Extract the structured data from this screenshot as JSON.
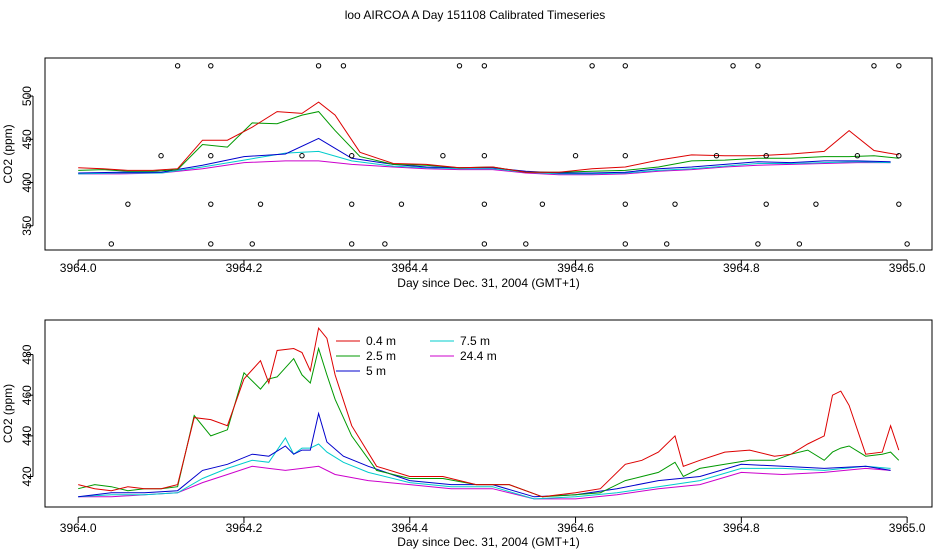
{
  "figure": {
    "title": "loo AIRCOA A  Day 151108  Calibrated Timeseries"
  },
  "chart_data": [
    {
      "type": "line",
      "xlabel": "Day since Dec. 31, 2004 (GMT+1)",
      "ylabel": "CO2 (ppm)",
      "xlim": [
        3963.96,
        3965.03
      ],
      "ylim": [
        322,
        544
      ],
      "x_ticks": [
        3964.0,
        3964.2,
        3964.4,
        3964.6,
        3964.8,
        3965.0
      ],
      "x_tick_labels": [
        "3964.0",
        "3964.2",
        "3964.4",
        "3964.6",
        "3964.8",
        "3965.0"
      ],
      "y_ticks": [
        350,
        400,
        450,
        500
      ],
      "y_tick_labels": [
        "350",
        "400",
        "450",
        "500"
      ],
      "series": [
        {
          "name": "0.4 m",
          "color": "#dd0000",
          "x": [
            3964.0,
            3964.03,
            3964.06,
            3964.09,
            3964.12,
            3964.15,
            3964.18,
            3964.21,
            3964.24,
            3964.27,
            3964.29,
            3964.31,
            3964.34,
            3964.38,
            3964.42,
            3964.46,
            3964.5,
            3964.54,
            3964.58,
            3964.62,
            3964.66,
            3964.7,
            3964.74,
            3964.78,
            3964.82,
            3964.86,
            3964.9,
            3964.93,
            3964.96,
            3964.99
          ],
          "y": [
            417,
            416,
            414,
            414,
            416,
            449,
            449,
            464,
            482,
            480,
            493,
            478,
            435,
            422,
            421,
            417,
            418,
            412,
            412,
            416,
            418,
            426,
            432,
            431,
            431,
            433,
            436,
            460,
            437,
            432
          ]
        },
        {
          "name": "2.5 m",
          "color": "#009900",
          "x": [
            3964.0,
            3964.03,
            3964.06,
            3964.09,
            3964.12,
            3964.15,
            3964.18,
            3964.21,
            3964.24,
            3964.27,
            3964.29,
            3964.31,
            3964.34,
            3964.38,
            3964.42,
            3964.46,
            3964.5,
            3964.54,
            3964.58,
            3964.62,
            3964.66,
            3964.7,
            3964.74,
            3964.78,
            3964.82,
            3964.86,
            3964.9,
            3964.93,
            3964.96,
            3964.99
          ],
          "y": [
            414,
            415,
            413,
            413,
            415,
            444,
            441,
            469,
            468,
            478,
            482,
            460,
            430,
            421,
            420,
            417,
            418,
            412,
            412,
            413,
            414,
            418,
            425,
            426,
            428,
            428,
            430,
            430,
            431,
            428
          ]
        },
        {
          "name": "5 m",
          "color": "#0000cc",
          "x": [
            3964.0,
            3964.05,
            3964.1,
            3964.15,
            3964.2,
            3964.25,
            3964.29,
            3964.33,
            3964.38,
            3964.42,
            3964.46,
            3964.5,
            3964.54,
            3964.58,
            3964.62,
            3964.66,
            3964.7,
            3964.74,
            3964.78,
            3964.82,
            3964.86,
            3964.9,
            3964.94,
            3964.98
          ],
          "y": [
            411,
            412,
            412,
            420,
            430,
            433,
            451,
            428,
            421,
            418,
            417,
            417,
            413,
            411,
            411,
            412,
            416,
            418,
            421,
            424,
            423,
            425,
            425,
            424
          ]
        },
        {
          "name": "7.5 m",
          "color": "#00cccc",
          "x": [
            3964.0,
            3964.05,
            3964.1,
            3964.15,
            3964.2,
            3964.25,
            3964.29,
            3964.33,
            3964.38,
            3964.42,
            3964.46,
            3964.5,
            3964.54,
            3964.58,
            3964.62,
            3964.66,
            3964.7,
            3964.74,
            3964.78,
            3964.82,
            3964.86,
            3964.9,
            3964.94,
            3964.98
          ],
          "y": [
            410,
            411,
            411,
            418,
            426,
            434,
            436,
            425,
            419,
            417,
            416,
            416,
            412,
            410,
            410,
            411,
            414,
            416,
            419,
            422,
            422,
            423,
            424,
            423
          ]
        },
        {
          "name": "24.4 m",
          "color": "#cc00cc",
          "x": [
            3964.0,
            3964.05,
            3964.1,
            3964.15,
            3964.2,
            3964.25,
            3964.29,
            3964.33,
            3964.38,
            3964.42,
            3964.46,
            3964.5,
            3964.54,
            3964.58,
            3964.62,
            3964.66,
            3964.7,
            3964.74,
            3964.78,
            3964.82,
            3964.86,
            3964.9,
            3964.94,
            3964.98
          ],
          "y": [
            410,
            410,
            411,
            416,
            423,
            425,
            425,
            421,
            418,
            416,
            415,
            415,
            411,
            409,
            409,
            410,
            413,
            415,
            418,
            420,
            421,
            422,
            423,
            423
          ]
        }
      ],
      "markers": {
        "symbol": "open-circle",
        "x": [
          3964.12,
          3964.16,
          3964.29,
          3964.32,
          3964.46,
          3964.49,
          3964.62,
          3964.66,
          3964.79,
          3964.82,
          3964.96,
          3964.99,
          3964.1,
          3964.16,
          3964.27,
          3964.33,
          3964.44,
          3964.49,
          3964.6,
          3964.66,
          3964.77,
          3964.83,
          3964.94,
          3964.99,
          3964.06,
          3964.16,
          3964.22,
          3964.33,
          3964.39,
          3964.49,
          3964.56,
          3964.66,
          3964.72,
          3964.83,
          3964.89,
          3964.99,
          3964.04,
          3964.16,
          3964.21,
          3964.33,
          3964.37,
          3964.49,
          3964.54,
          3964.66,
          3964.71,
          3964.82,
          3964.87,
          3965.0
        ],
        "y": [
          535,
          535,
          535,
          535,
          535,
          535,
          535,
          535,
          535,
          535,
          535,
          535,
          431,
          431,
          431,
          431,
          431,
          431,
          431,
          431,
          431,
          431,
          431,
          431,
          375,
          375,
          375,
          375,
          375,
          375,
          375,
          375,
          375,
          375,
          375,
          375,
          329,
          329,
          329,
          329,
          329,
          329,
          329,
          329,
          329,
          329,
          329,
          329
        ]
      }
    },
    {
      "type": "line",
      "xlabel": "Day since Dec. 31, 2004 (GMT+1)",
      "ylabel": "CO2 (ppm)",
      "xlim": [
        3963.96,
        3965.03
      ],
      "ylim": [
        405,
        497
      ],
      "x_ticks": [
        3964.0,
        3964.2,
        3964.4,
        3964.6,
        3964.8,
        3965.0
      ],
      "x_tick_labels": [
        "3964.0",
        "3964.2",
        "3964.4",
        "3964.6",
        "3964.8",
        "3965.0"
      ],
      "y_ticks": [
        420,
        440,
        460,
        480
      ],
      "y_tick_labels": [
        "420",
        "440",
        "460",
        "480"
      ],
      "legend": {
        "placement": "top-center",
        "entries": [
          {
            "label": "0.4 m",
            "color": "#dd0000"
          },
          {
            "label": "2.5 m",
            "color": "#009900"
          },
          {
            "label": "5 m",
            "color": "#0000cc"
          },
          {
            "label": "7.5 m",
            "color": "#00cccc"
          },
          {
            "label": "24.4 m",
            "color": "#cc00cc"
          }
        ]
      },
      "series": [
        {
          "name": "0.4 m",
          "color": "#dd0000",
          "x": [
            3964.0,
            3964.02,
            3964.04,
            3964.06,
            3964.08,
            3964.1,
            3964.12,
            3964.14,
            3964.16,
            3964.18,
            3964.2,
            3964.22,
            3964.23,
            3964.24,
            3964.26,
            3964.27,
            3964.28,
            3964.29,
            3964.3,
            3964.31,
            3964.33,
            3964.36,
            3964.4,
            3964.44,
            3964.48,
            3964.52,
            3964.56,
            3964.6,
            3964.63,
            3964.66,
            3964.68,
            3964.7,
            3964.72,
            3964.73,
            3964.75,
            3964.78,
            3964.81,
            3964.84,
            3964.86,
            3964.88,
            3964.9,
            3964.91,
            3964.92,
            3964.93,
            3964.95,
            3964.97,
            3964.98,
            3964.99
          ],
          "y": [
            416,
            414,
            413,
            415,
            414,
            414,
            416,
            449,
            448,
            445,
            468,
            477,
            466,
            482,
            483,
            481,
            472,
            493,
            488,
            470,
            445,
            425,
            420,
            420,
            416,
            416,
            410,
            412,
            414,
            426,
            428,
            432,
            440,
            425,
            428,
            432,
            433,
            430,
            431,
            436,
            440,
            460,
            462,
            455,
            431,
            432,
            445,
            433
          ]
        },
        {
          "name": "2.5 m",
          "color": "#009900",
          "x": [
            3964.0,
            3964.02,
            3964.04,
            3964.06,
            3964.08,
            3964.1,
            3964.12,
            3964.14,
            3964.16,
            3964.18,
            3964.2,
            3964.22,
            3964.23,
            3964.24,
            3964.26,
            3964.27,
            3964.28,
            3964.29,
            3964.3,
            3964.31,
            3964.33,
            3964.36,
            3964.4,
            3964.44,
            3964.48,
            3964.52,
            3964.56,
            3964.6,
            3964.63,
            3964.66,
            3964.68,
            3964.7,
            3964.72,
            3964.73,
            3964.75,
            3964.78,
            3964.81,
            3964.84,
            3964.86,
            3964.88,
            3964.9,
            3964.91,
            3964.92,
            3964.93,
            3964.95,
            3964.97,
            3964.98,
            3964.99
          ],
          "y": [
            414,
            416,
            415,
            413,
            414,
            414,
            415,
            450,
            440,
            443,
            471,
            463,
            468,
            469,
            478,
            470,
            466,
            483,
            470,
            458,
            440,
            423,
            419,
            419,
            416,
            416,
            410,
            411,
            412,
            418,
            420,
            422,
            427,
            420,
            424,
            426,
            428,
            428,
            431,
            433,
            428,
            432,
            434,
            435,
            430,
            431,
            432,
            428
          ]
        },
        {
          "name": "5 m",
          "color": "#0000cc",
          "x": [
            3964.0,
            3964.04,
            3964.08,
            3964.12,
            3964.15,
            3964.18,
            3964.21,
            3964.23,
            3964.25,
            3964.26,
            3964.27,
            3964.28,
            3964.29,
            3964.3,
            3964.32,
            3964.35,
            3964.4,
            3964.45,
            3964.5,
            3964.55,
            3964.6,
            3964.65,
            3964.7,
            3964.75,
            3964.8,
            3964.85,
            3964.9,
            3964.95,
            3964.98
          ],
          "y": [
            410,
            412,
            412,
            413,
            423,
            426,
            431,
            430,
            435,
            431,
            433,
            433,
            451,
            437,
            430,
            425,
            418,
            416,
            416,
            410,
            411,
            414,
            418,
            420,
            426,
            425,
            424,
            425,
            423
          ]
        },
        {
          "name": "7.5 m",
          "color": "#00cccc",
          "x": [
            3964.0,
            3964.04,
            3964.08,
            3964.12,
            3964.15,
            3964.18,
            3964.21,
            3964.23,
            3964.25,
            3964.26,
            3964.27,
            3964.28,
            3964.29,
            3964.3,
            3964.32,
            3964.35,
            3964.4,
            3964.45,
            3964.5,
            3964.55,
            3964.6,
            3964.65,
            3964.7,
            3964.75,
            3964.8,
            3964.85,
            3964.9,
            3964.95,
            3964.98
          ],
          "y": [
            410,
            411,
            411,
            412,
            419,
            424,
            428,
            427,
            439,
            431,
            434,
            434,
            436,
            432,
            427,
            422,
            417,
            415,
            415,
            409,
            410,
            412,
            415,
            418,
            424,
            424,
            423,
            425,
            424
          ]
        },
        {
          "name": "24.4 m",
          "color": "#cc00cc",
          "x": [
            3964.0,
            3964.04,
            3964.08,
            3964.12,
            3964.15,
            3964.18,
            3964.21,
            3964.23,
            3964.25,
            3964.27,
            3964.29,
            3964.31,
            3964.35,
            3964.4,
            3964.45,
            3964.5,
            3964.55,
            3964.6,
            3964.65,
            3964.7,
            3964.75,
            3964.8,
            3964.85,
            3964.9,
            3964.95,
            3964.98
          ],
          "y": [
            410,
            410,
            411,
            412,
            417,
            421,
            425,
            424,
            423,
            424,
            425,
            421,
            418,
            416,
            414,
            414,
            409,
            409,
            411,
            414,
            416,
            422,
            421,
            422,
            424,
            423
          ]
        }
      ]
    }
  ]
}
